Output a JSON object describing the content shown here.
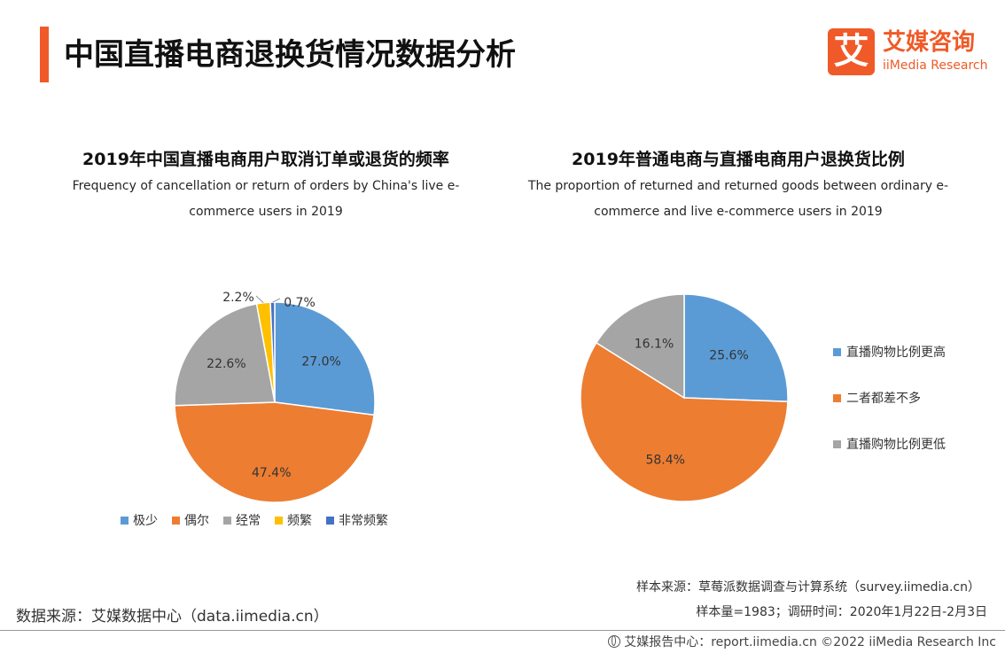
{
  "header": {
    "title": "中国直播电商退换货情况数据分析",
    "logo": {
      "cn": "艾媒咨询",
      "en": "iiMedia Research",
      "mark": "艾"
    }
  },
  "colors": {
    "accent": "#f05a28",
    "blue": "#5b9bd5",
    "orange": "#ed7d31",
    "gray": "#a5a5a5",
    "yellow": "#ffc000",
    "darkblue": "#4472c4"
  },
  "charts": [
    {
      "title": "2019年中国直播电商用户取消订单或退货的频率",
      "subtitle_en": "Frequency of cancellation or return of orders by China's live e-commerce users in 2019"
    },
    {
      "title": "2019年普通电商与直播电商用户退换货比例",
      "subtitle_en": "The proportion of returned and returned goods between ordinary e-commerce and live e-commerce users in 2019"
    }
  ],
  "chart_data": [
    {
      "type": "pie",
      "title": "2019年中国直播电商用户取消订单或退货的频率",
      "categories": [
        "极少",
        "偶尔",
        "经常",
        "频繁",
        "非常频繁"
      ],
      "values": [
        27.0,
        47.4,
        22.6,
        2.2,
        0.7
      ],
      "labels": [
        "27.0%",
        "47.4%",
        "22.6%",
        "2.2%",
        "0.7%"
      ],
      "colors": [
        "#5b9bd5",
        "#ed7d31",
        "#a5a5a5",
        "#ffc000",
        "#4472c4"
      ],
      "legend": "bottom"
    },
    {
      "type": "pie",
      "title": "2019年普通电商与直播电商用户退换货比例",
      "categories": [
        "直播购物比例更高",
        "二者都差不多",
        "直播购物比例更低"
      ],
      "values": [
        25.6,
        58.4,
        16.1
      ],
      "labels": [
        "25.6%",
        "58.4%",
        "16.1%"
      ],
      "colors": [
        "#5b9bd5",
        "#ed7d31",
        "#a5a5a5"
      ],
      "legend": "right"
    }
  ],
  "sources": {
    "data_source": "数据来源：艾媒数据中心（data.iimedia.cn）",
    "sample_source": "样本来源：草莓派数据调查与计算系统（survey.iimedia.cn）",
    "sample_info": "样本量=1983；调研时间：2020年1月22日-2月3日"
  },
  "footer": {
    "text": "艾媒报告中心：report.iimedia.cn   ©2022  iiMedia Research  Inc",
    "icon": "globe-icon"
  }
}
